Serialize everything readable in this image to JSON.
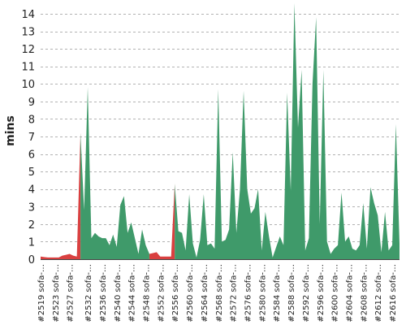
{
  "chart_data": {
    "type": "area",
    "title": "",
    "xlabel": "",
    "ylabel": "mins",
    "ylim": [
      0,
      14.6
    ],
    "yticks": [
      0,
      1,
      2,
      3,
      4,
      5,
      6,
      7,
      8,
      9,
      10,
      11,
      12,
      13,
      14
    ],
    "grid": "horizontal, dashed",
    "legend": "none",
    "colors": {
      "failed": "#d94040",
      "passed": "#3f9a6a",
      "grid": "#999999"
    },
    "x_tick_labels": [
      "#2519 sofa-…",
      "#2523 sofa-…",
      "#2527 sofa-…",
      "#2532 sofa-…",
      "#2536 sofa-…",
      "#2540 sofa-…",
      "#2544 sofa-…",
      "#2548 sofa-…",
      "#2552 sofa-…",
      "#2556 sofa-…",
      "#2560 sofa-…",
      "#2564 sofa-…",
      "#2568 sofa-…",
      "#2572 sofa-…",
      "#2576 sofa-…",
      "#2580 sofa-…",
      "#2584 sofa-…",
      "#2588 sofa-…",
      "#2592 sofa-…",
      "#2596 sofa-…",
      "#2600 sofa-…",
      "#2604 sofa-…",
      "#2608 sofa-…",
      "#2612 sofa-…",
      "#2616 sofa-…"
    ],
    "x": [
      2519,
      2520,
      2521,
      2522,
      2523,
      2524,
      2525,
      2526,
      2527,
      2528,
      2529,
      2530,
      2531,
      2532,
      2533,
      2534,
      2535,
      2536,
      2537,
      2538,
      2539,
      2540,
      2541,
      2542,
      2543,
      2544,
      2545,
      2546,
      2547,
      2548,
      2549,
      2550,
      2551,
      2552,
      2553,
      2554,
      2555,
      2556,
      2557,
      2558,
      2559,
      2560,
      2561,
      2562,
      2563,
      2564,
      2565,
      2566,
      2567,
      2568,
      2569,
      2570,
      2571,
      2572,
      2573,
      2574,
      2575,
      2576,
      2577,
      2578,
      2579,
      2580,
      2581,
      2582,
      2583,
      2584,
      2585,
      2586,
      2587,
      2588,
      2589,
      2590,
      2591,
      2592,
      2593,
      2594,
      2595,
      2596,
      2597,
      2598,
      2599,
      2600,
      2601,
      2602,
      2603,
      2604,
      2605,
      2606,
      2607,
      2608,
      2609,
      2610,
      2611,
      2612,
      2613,
      2614,
      2615,
      2616,
      2617,
      2618
    ],
    "y": [
      0.15,
      0.12,
      0.1,
      0.1,
      0.1,
      0.1,
      0.2,
      0.25,
      0.3,
      0.2,
      0.15,
      7.2,
      2.8,
      9.8,
      1.2,
      1.5,
      1.3,
      1.2,
      1.2,
      0.8,
      1.4,
      0.7,
      3.1,
      3.6,
      1.5,
      2.1,
      1.2,
      0.3,
      1.7,
      0.8,
      0.3,
      0.35,
      0.4,
      0.15,
      0.15,
      0.15,
      0.15,
      4.3,
      1.6,
      1.5,
      0.5,
      3.7,
      0.9,
      0.1,
      1.1,
      3.7,
      0.8,
      0.9,
      0.6,
      9.7,
      1.0,
      1.1,
      1.7,
      6.1,
      1.5,
      4.0,
      9.6,
      4.0,
      2.6,
      2.9,
      4.0,
      0.5,
      2.7,
      1.3,
      0.1,
      0.7,
      1.3,
      0.8,
      9.5,
      3.9,
      14.6,
      7.5,
      10.8,
      0.5,
      1.2,
      10.0,
      13.8,
      2.0,
      10.8,
      1.0,
      0.3,
      0.6,
      0.8,
      3.8,
      1.0,
      1.3,
      0.6,
      0.5,
      0.8,
      3.2,
      0.6,
      4.1,
      3.2,
      2.5,
      0.4,
      2.7,
      0.5,
      0.8,
      7.7,
      0.9
    ],
    "status": [
      "failed",
      "failed",
      "failed",
      "failed",
      "failed",
      "failed",
      "failed",
      "failed",
      "failed",
      "failed",
      "failed",
      "passed",
      "passed",
      "passed",
      "passed",
      "passed",
      "passed",
      "passed",
      "passed",
      "passed",
      "passed",
      "passed",
      "passed",
      "passed",
      "passed",
      "passed",
      "passed",
      "passed",
      "passed",
      "passed",
      "failed",
      "failed",
      "failed",
      "failed",
      "failed",
      "failed",
      "failed",
      "passed",
      "passed",
      "passed",
      "passed",
      "passed",
      "passed",
      "passed",
      "passed",
      "passed",
      "passed",
      "passed",
      "passed",
      "passed",
      "passed",
      "passed",
      "passed",
      "passed",
      "passed",
      "passed",
      "passed",
      "passed",
      "passed",
      "passed",
      "passed",
      "passed",
      "passed",
      "passed",
      "passed",
      "passed",
      "passed",
      "passed",
      "passed",
      "passed",
      "passed",
      "passed",
      "passed",
      "passed",
      "passed",
      "passed",
      "passed",
      "passed",
      "passed",
      "passed",
      "passed",
      "passed",
      "passed",
      "passed",
      "passed",
      "passed",
      "passed",
      "passed",
      "passed",
      "passed",
      "passed",
      "passed",
      "passed",
      "passed",
      "passed",
      "passed",
      "passed",
      "passed",
      "passed",
      "passed"
    ]
  }
}
